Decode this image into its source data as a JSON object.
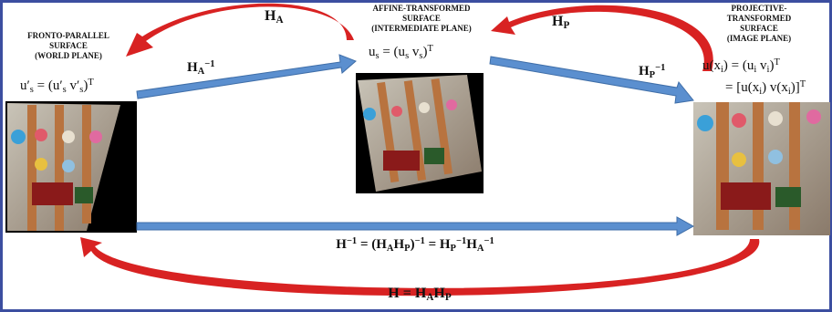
{
  "labels": {
    "world": [
      "FRONTO-PARALLEL",
      "SURFACE",
      "(WORLD PLANE)"
    ],
    "intermediate": [
      "AFFINE-TRANSFORMED",
      "SURFACE",
      "(INTERMEDIATE PLANE)"
    ],
    "image": [
      "PROJECTIVE-",
      "TRANSFORMED",
      "SURFACE",
      "(IMAGE PLANE)"
    ]
  },
  "formulas": {
    "world": [
      "u′",
      "s",
      " = (u′",
      "s",
      " v′",
      "s",
      ")",
      "T"
    ],
    "intermediate": [
      "u",
      "s",
      " = (u",
      "s",
      " v",
      "s",
      ")",
      "T"
    ],
    "image": [
      [
        "u(x",
        "i",
        ") = (u",
        "i",
        " v",
        "i",
        ")",
        "T"
      ],
      [
        "= [u(x",
        "i",
        ") v(x",
        "i",
        ")]",
        "T"
      ]
    ]
  },
  "arrows": {
    "h_a": [
      "H",
      "A"
    ],
    "h_p": [
      "H",
      "P"
    ],
    "h_a_inv": [
      "H",
      "A",
      "−1"
    ],
    "h_p_inv": [
      "H",
      "P",
      "−1"
    ],
    "h_inv": [
      "H",
      "−1",
      " = (H",
      "A",
      "H",
      "P",
      ")",
      "−1",
      " = H",
      "P",
      "−1",
      "H",
      "A",
      "−1"
    ],
    "h": [
      "H = H",
      "A",
      "H",
      "P"
    ]
  }
}
